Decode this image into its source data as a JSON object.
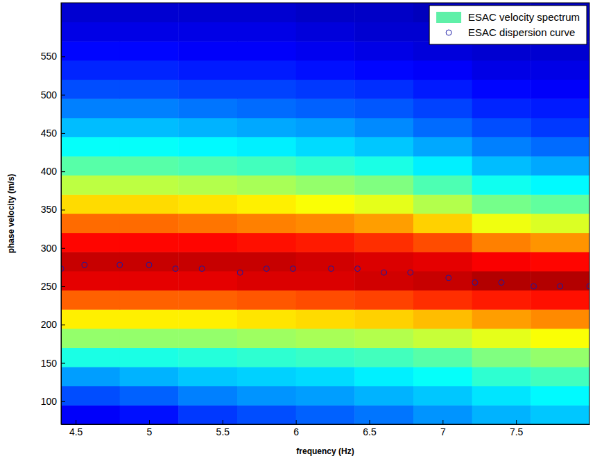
{
  "chart_data": {
    "type": "heatmap",
    "xlabel": "frequency (Hz)",
    "ylabel": "phase velocity (m/s)",
    "xlim": [
      4.4,
      8.0
    ],
    "ylim": [
      70,
      620
    ],
    "xticks": [
      4.5,
      5,
      5.5,
      6,
      6.5,
      7,
      7.5
    ],
    "yticks": [
      100,
      150,
      200,
      250,
      300,
      350,
      400,
      450,
      500,
      550
    ],
    "legend": "upper right",
    "heatmap": {
      "name": "ESAC velocity spectrum",
      "color": "#5ff0a8",
      "zlim": [
        0,
        1
      ],
      "x_edges": [
        4.4,
        4.8,
        5.2,
        5.6,
        6.0,
        6.4,
        6.8,
        7.2,
        7.6,
        8.0
      ],
      "y_edges": [
        70,
        95,
        120,
        145,
        170,
        195,
        220,
        245,
        270,
        295,
        320,
        345,
        370,
        395,
        420,
        445,
        470,
        495,
        520,
        545,
        570,
        595,
        620
      ],
      "cells": [
        [
          0.12,
          0.14,
          0.18,
          0.2,
          0.22,
          0.24,
          0.27,
          0.3,
          0.32
        ],
        [
          0.2,
          0.22,
          0.25,
          0.27,
          0.28,
          0.3,
          0.32,
          0.35,
          0.37
        ],
        [
          0.28,
          0.3,
          0.32,
          0.33,
          0.34,
          0.36,
          0.38,
          0.42,
          0.44
        ],
        [
          0.4,
          0.4,
          0.41,
          0.42,
          0.43,
          0.44,
          0.46,
          0.5,
          0.52
        ],
        [
          0.52,
          0.52,
          0.52,
          0.53,
          0.54,
          0.55,
          0.57,
          0.6,
          0.62
        ],
        [
          0.64,
          0.64,
          0.64,
          0.65,
          0.66,
          0.67,
          0.69,
          0.72,
          0.74
        ],
        [
          0.78,
          0.78,
          0.78,
          0.79,
          0.8,
          0.81,
          0.83,
          0.85,
          0.86
        ],
        [
          0.9,
          0.9,
          0.9,
          0.91,
          0.91,
          0.92,
          0.93,
          0.95,
          0.95
        ],
        [
          0.93,
          0.93,
          0.93,
          0.93,
          0.92,
          0.91,
          0.9,
          0.88,
          0.87
        ],
        [
          0.87,
          0.87,
          0.87,
          0.86,
          0.85,
          0.83,
          0.8,
          0.75,
          0.73
        ],
        [
          0.77,
          0.77,
          0.76,
          0.75,
          0.74,
          0.72,
          0.67,
          0.61,
          0.59
        ],
        [
          0.66,
          0.66,
          0.65,
          0.64,
          0.62,
          0.6,
          0.55,
          0.49,
          0.47
        ],
        [
          0.56,
          0.56,
          0.55,
          0.54,
          0.52,
          0.5,
          0.45,
          0.39,
          0.37
        ],
        [
          0.46,
          0.46,
          0.45,
          0.44,
          0.42,
          0.4,
          0.36,
          0.31,
          0.29
        ],
        [
          0.38,
          0.38,
          0.37,
          0.36,
          0.34,
          0.32,
          0.29,
          0.25,
          0.23
        ],
        [
          0.31,
          0.31,
          0.3,
          0.29,
          0.28,
          0.26,
          0.23,
          0.2,
          0.18
        ],
        [
          0.25,
          0.25,
          0.24,
          0.23,
          0.22,
          0.21,
          0.19,
          0.16,
          0.15
        ],
        [
          0.2,
          0.2,
          0.19,
          0.19,
          0.18,
          0.17,
          0.15,
          0.13,
          0.12
        ],
        [
          0.16,
          0.16,
          0.15,
          0.15,
          0.14,
          0.13,
          0.12,
          0.1,
          0.1
        ],
        [
          0.13,
          0.13,
          0.12,
          0.12,
          0.11,
          0.1,
          0.09,
          0.08,
          0.08
        ],
        [
          0.1,
          0.1,
          0.1,
          0.1,
          0.09,
          0.08,
          0.08,
          0.07,
          0.07
        ],
        [
          0.08,
          0.08,
          0.08,
          0.08,
          0.07,
          0.07,
          0.06,
          0.06,
          0.06
        ]
      ]
    },
    "series": [
      {
        "name": "ESAC dispersion curve",
        "type": "scatter",
        "marker": "circle",
        "color": "#1a1aa6",
        "x": [
          4.4,
          4.56,
          4.8,
          5.0,
          5.18,
          5.36,
          5.62,
          5.8,
          5.98,
          6.24,
          6.42,
          6.6,
          6.78,
          7.04,
          7.22,
          7.4,
          7.62,
          7.8,
          8.0
        ],
        "values": [
          273,
          278,
          278,
          278,
          273,
          273,
          268,
          273,
          273,
          273,
          273,
          268,
          268,
          261,
          255,
          255,
          250,
          250,
          250
        ]
      }
    ]
  }
}
